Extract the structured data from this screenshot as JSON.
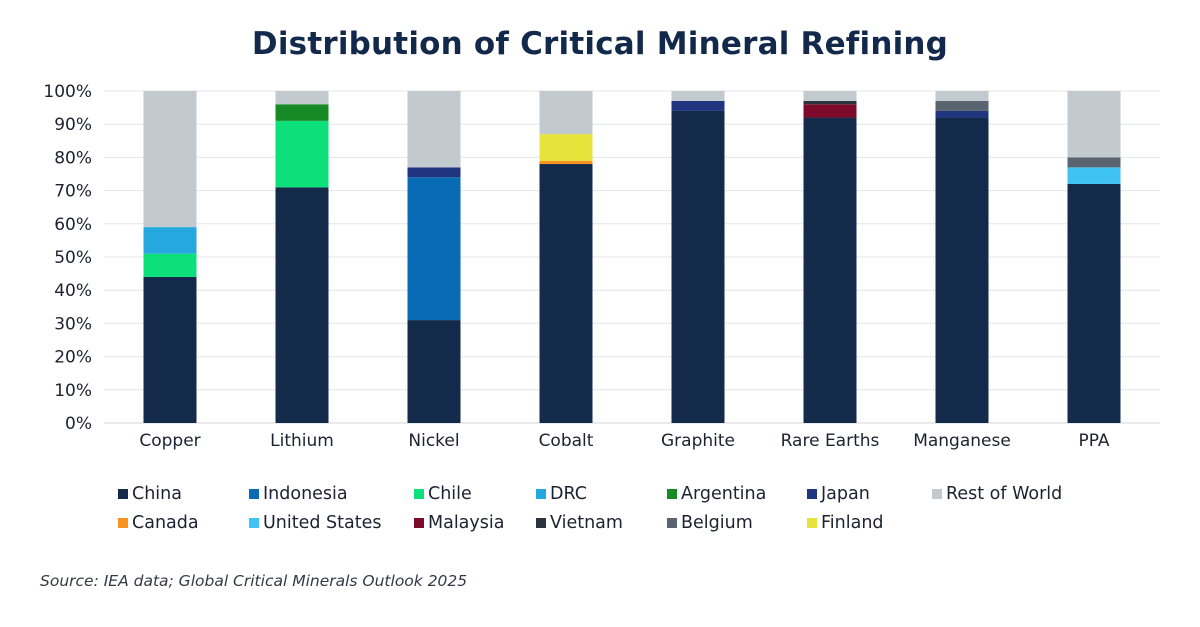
{
  "chart_data": {
    "type": "bar",
    "stacked": true,
    "title": "Distribution of Critical Mineral Refining",
    "xlabel": "",
    "ylabel": "",
    "ylim": [
      0,
      100
    ],
    "yticks": [
      "0%",
      "10%",
      "20%",
      "30%",
      "40%",
      "50%",
      "60%",
      "70%",
      "80%",
      "90%",
      "100%"
    ],
    "grid": true,
    "legend_position": "bottom",
    "categories": [
      "Copper",
      "Lithium",
      "Nickel",
      "Cobalt",
      "Graphite",
      "Rare Earths",
      "Manganese",
      "PPA"
    ],
    "series": [
      {
        "name": "China",
        "color": "#132a4a",
        "values": [
          44,
          71,
          31,
          78,
          94,
          92,
          92,
          72
        ]
      },
      {
        "name": "Indonesia",
        "color": "#0a6bb5",
        "values": [
          0,
          0,
          43,
          0,
          0,
          0,
          0,
          0
        ]
      },
      {
        "name": "Chile",
        "color": "#0be07a",
        "values": [
          7,
          20,
          0,
          0,
          0,
          0,
          0,
          0
        ]
      },
      {
        "name": "DRC",
        "color": "#25a8e0",
        "values": [
          8,
          0,
          0,
          0,
          0,
          0,
          0,
          0
        ]
      },
      {
        "name": "Argentina",
        "color": "#188a25",
        "values": [
          0,
          5,
          0,
          0,
          0,
          0,
          0,
          0
        ]
      },
      {
        "name": "Japan",
        "color": "#1f3580",
        "values": [
          0,
          0,
          3,
          0,
          3,
          0,
          2,
          0
        ]
      },
      {
        "name": "Canada",
        "color": "#f7941d",
        "values": [
          0,
          0,
          0,
          1,
          0,
          0,
          0,
          0
        ]
      },
      {
        "name": "United States",
        "color": "#3fc3f3",
        "values": [
          0,
          0,
          0,
          0,
          0,
          0,
          0,
          5
        ]
      },
      {
        "name": "Malaysia",
        "color": "#7d0a2a",
        "values": [
          0,
          0,
          0,
          0,
          0,
          4,
          0,
          0
        ]
      },
      {
        "name": "Vietnam",
        "color": "#2c3340",
        "values": [
          0,
          0,
          0,
          0,
          0,
          1,
          0,
          0
        ]
      },
      {
        "name": "Belgium",
        "color": "#5a6470",
        "values": [
          0,
          0,
          0,
          0,
          0,
          0,
          3,
          3
        ]
      },
      {
        "name": "Finland",
        "color": "#e6e33a",
        "values": [
          0,
          0,
          0,
          8,
          0,
          0,
          0,
          0
        ]
      },
      {
        "name": "Rest of World",
        "color": "#c3cacf",
        "values": [
          41,
          4,
          23,
          13,
          3,
          3,
          3,
          20
        ]
      }
    ],
    "legend_order": [
      "China",
      "Indonesia",
      "Chile",
      "DRC",
      "Argentina",
      "Japan",
      "Rest of World",
      "Canada",
      "United States",
      "Malaysia",
      "Vietnam",
      "Belgium",
      "Finland"
    ],
    "stack_order": [
      "China",
      "Indonesia",
      "Chile",
      "DRC",
      "Argentina",
      "Japan",
      "Canada",
      "United States",
      "Malaysia",
      "Vietnam",
      "Belgium",
      "Finland",
      "Rest of World"
    ]
  },
  "source": "Source: IEA data; Global Critical Minerals Outlook 2025"
}
